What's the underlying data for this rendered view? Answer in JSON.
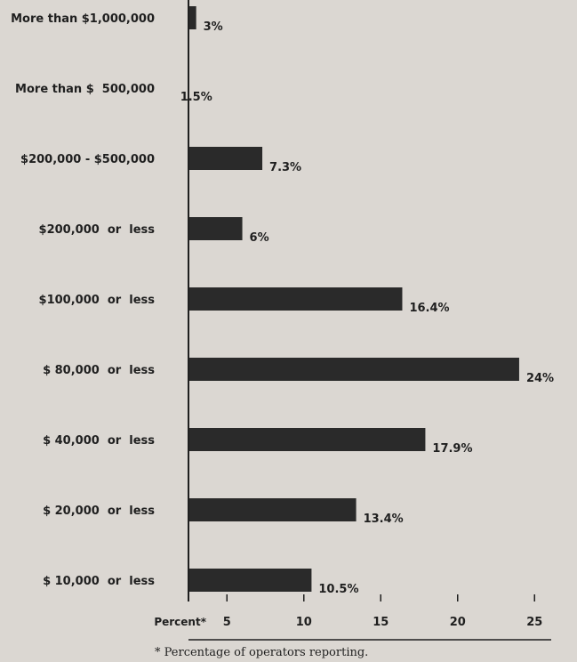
{
  "chart_data": {
    "type": "bar",
    "orientation": "horizontal",
    "categories": [
      "More than $1,000,000",
      "More than $  500,000",
      "$200,000 - $500,000",
      "$200,000  or  less",
      "$100,000  or  less",
      "$ 80,000  or  less",
      "$ 40,000  or  less",
      "$ 20,000  or  less",
      "$ 10,000  or  less"
    ],
    "values": [
      3,
      1.5,
      7.3,
      6,
      16.4,
      24,
      17.9,
      13.4,
      10.5
    ],
    "value_labels": [
      "3%",
      "1.5%",
      "7.3%",
      "6%",
      "16.4%",
      "24%",
      "17.9%",
      "13.4%",
      "10.5%"
    ],
    "xlim": [
      2.5,
      25
    ],
    "ticks": [
      5,
      10,
      15,
      20,
      25
    ],
    "tick_labels": [
      "5",
      "10",
      "15",
      "20",
      "25"
    ],
    "xlabel": "Percent*",
    "footnote": "* Percentage of operators reporting.",
    "colors": {
      "bar": "#2a2a2a",
      "background": "#dbd7d2"
    },
    "grid": false
  }
}
